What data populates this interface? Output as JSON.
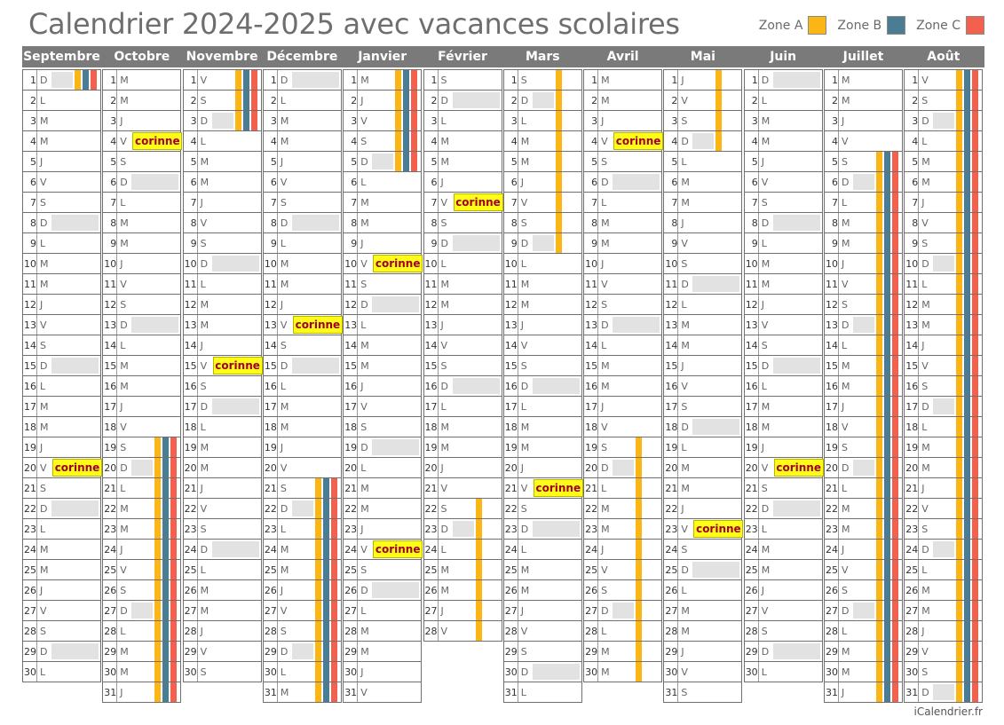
{
  "title": "Calendrier 2024-2025 avec vacances scolaires",
  "legend": [
    {
      "label": "Zone A",
      "color": "#fbb616"
    },
    {
      "label": "Zone B",
      "color": "#4a7c94"
    },
    {
      "label": "Zone C",
      "color": "#f4604e"
    }
  ],
  "footer": "iCalendrier.fr",
  "event_label": "corinne",
  "months": [
    {
      "name": "Septembre",
      "days": 30,
      "start": 6,
      "events": [
        20
      ],
      "holidays": {
        "A": [
          [
            1,
            1
          ]
        ],
        "B": [
          [
            1,
            1
          ]
        ],
        "C": [
          [
            1,
            1
          ]
        ]
      }
    },
    {
      "name": "Octobre",
      "days": 31,
      "start": 1,
      "events": [
        4
      ],
      "holidays": {
        "A": [
          [
            19,
            31
          ]
        ],
        "B": [
          [
            19,
            31
          ]
        ],
        "C": [
          [
            19,
            31
          ]
        ]
      }
    },
    {
      "name": "Novembre",
      "days": 30,
      "start": 4,
      "events": [
        15
      ],
      "holidays": {
        "A": [
          [
            1,
            3
          ]
        ],
        "B": [
          [
            1,
            3
          ]
        ],
        "C": [
          [
            1,
            3
          ]
        ]
      }
    },
    {
      "name": "Décembre",
      "days": 31,
      "start": 6,
      "events": [
        13
      ],
      "holidays": {
        "A": [
          [
            21,
            31
          ]
        ],
        "B": [
          [
            21,
            31
          ]
        ],
        "C": [
          [
            21,
            31
          ]
        ]
      }
    },
    {
      "name": "Janvier",
      "days": 31,
      "start": 2,
      "events": [
        10,
        24
      ],
      "holidays": {
        "A": [
          [
            1,
            5
          ]
        ],
        "B": [
          [
            1,
            5
          ]
        ],
        "C": [
          [
            1,
            5
          ]
        ]
      }
    },
    {
      "name": "Février",
      "days": 28,
      "start": 5,
      "events": [
        7
      ],
      "holidays": {
        "A": [
          [
            22,
            28
          ]
        ],
        "B": [],
        "C": []
      }
    },
    {
      "name": "Mars",
      "days": 31,
      "start": 5,
      "events": [
        21
      ],
      "holidays": {
        "A": [
          [
            1,
            9
          ]
        ],
        "B": [],
        "C": []
      }
    },
    {
      "name": "Avril",
      "days": 30,
      "start": 1,
      "events": [
        4
      ],
      "holidays": {
        "A": [
          [
            19,
            30
          ]
        ],
        "B": [],
        "C": []
      }
    },
    {
      "name": "Mai",
      "days": 31,
      "start": 3,
      "events": [
        23
      ],
      "holidays": {
        "A": [
          [
            1,
            4
          ]
        ],
        "B": [],
        "C": []
      }
    },
    {
      "name": "Juin",
      "days": 30,
      "start": 6,
      "events": [
        20
      ],
      "holidays": {
        "A": [],
        "B": [],
        "C": []
      }
    },
    {
      "name": "Juillet",
      "days": 31,
      "start": 1,
      "events": [],
      "holidays": {
        "A": [
          [
            5,
            31
          ]
        ],
        "B": [
          [
            5,
            31
          ]
        ],
        "C": [
          [
            5,
            31
          ]
        ]
      }
    },
    {
      "name": "Août",
      "days": 31,
      "start": 4,
      "events": [],
      "holidays": {
        "A": [
          [
            1,
            31
          ]
        ],
        "B": [
          [
            1,
            31
          ]
        ],
        "C": [
          [
            1,
            31
          ]
        ]
      }
    }
  ],
  "weekday_letters": [
    "L",
    "M",
    "M",
    "J",
    "V",
    "S",
    "D"
  ]
}
